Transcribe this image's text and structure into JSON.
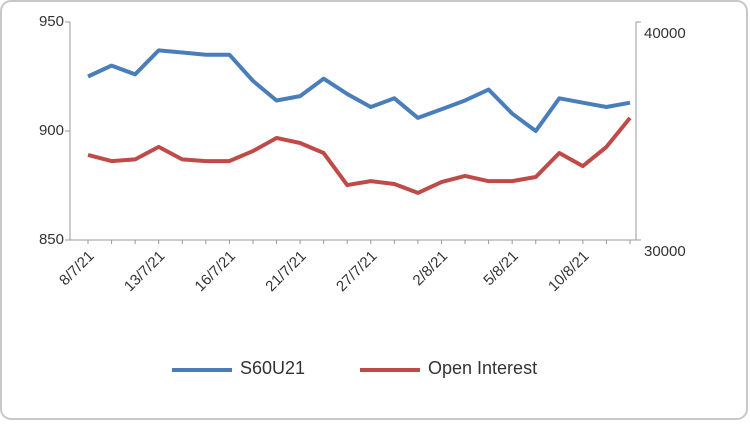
{
  "chart_data": {
    "type": "line",
    "categories": [
      "8/7/21",
      null,
      null,
      "13/7/21",
      null,
      null,
      "16/7/21",
      null,
      null,
      "21/7/21",
      null,
      null,
      "27/7/21",
      null,
      null,
      "2/8/21",
      null,
      null,
      "5/8/21",
      null,
      null,
      "10/8/21",
      null,
      null
    ],
    "series": [
      {
        "name": "S60U21",
        "color": "#4a7ebb",
        "values": [
          925,
          930,
          926,
          937,
          936,
          935,
          935,
          923,
          914,
          916,
          924,
          917,
          911,
          915,
          906,
          910,
          914,
          919,
          908,
          900,
          915,
          913,
          911,
          913
        ]
      },
      {
        "name": "Open Interest",
        "color": "#be4b48",
        "axis": "y2",
        "values": [
          33900,
          33620,
          33700,
          34270,
          33700,
          33620,
          33620,
          34080,
          34680,
          34450,
          33990,
          32520,
          32700,
          32570,
          32160,
          32660,
          32940,
          32700,
          32700,
          32890,
          33990,
          33390,
          34270,
          35600
        ]
      }
    ],
    "ylim": [
      850,
      950
    ],
    "yticks": [
      850,
      900,
      950
    ],
    "y2lim": [
      30000,
      40000
    ],
    "y2ticks": [
      30000,
      40000
    ],
    "legend": "bottom"
  }
}
